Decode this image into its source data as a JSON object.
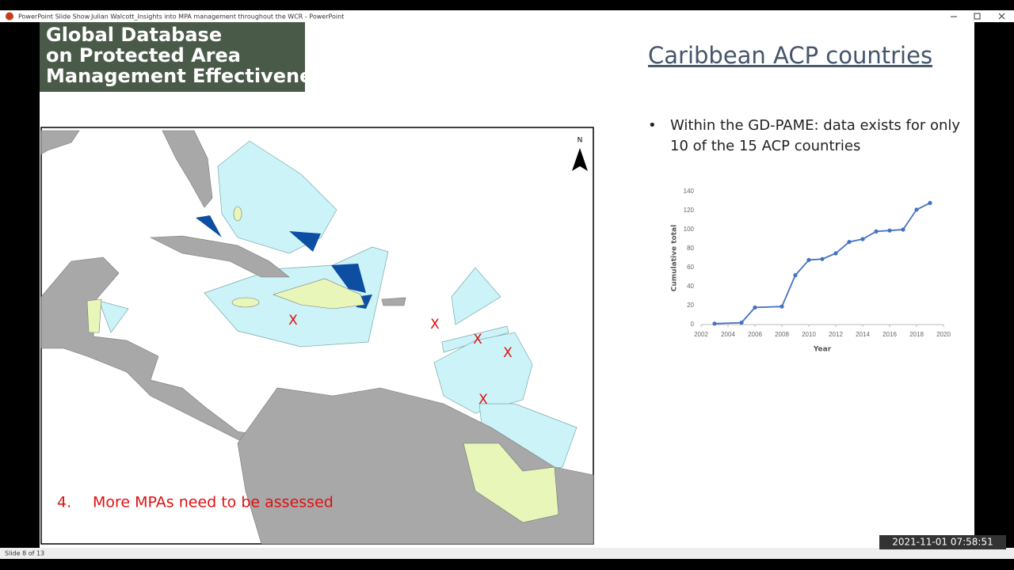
{
  "window": {
    "app_label": "PowerPoint Slide Show",
    "title": "Julian Walcott_Insights into MPA management throughout the WCR - PowerPoint",
    "status": "Slide 8 of 13",
    "timestamp": "2021-11-01  07:58:51"
  },
  "slide": {
    "banner": [
      "Global Database",
      "on Protected Area",
      "Management Effectiveness"
    ],
    "heading": "Caribbean ACP countries",
    "bullet": [
      "Within the GD-PAME: data exists for only",
      "10 of the 15 ACP countries"
    ],
    "map": {
      "north": "N",
      "markers": [
        "X",
        "X",
        "X",
        "X",
        "X"
      ],
      "note_number": "4.",
      "note": "More MPAs need to be assessed"
    }
  },
  "chart_data": {
    "type": "line",
    "x_label": "Year",
    "y_label": "Cumulative total",
    "series": [
      {
        "color": "#4472c4",
        "x": [
          2003,
          2005,
          2006,
          2008,
          2009,
          2010,
          2011,
          2012,
          2013,
          2014,
          2015,
          2016,
          2017,
          2018,
          2019
        ],
        "values": [
          1,
          2,
          18,
          19,
          52,
          68,
          69,
          75,
          87,
          90,
          98,
          99,
          100,
          121,
          128
        ]
      }
    ],
    "xlim": [
      2002,
      2020
    ],
    "xticks": [
      2002,
      2004,
      2006,
      2008,
      2010,
      2012,
      2014,
      2016,
      2018,
      2020
    ],
    "ylim": [
      0,
      140
    ],
    "yticks": [
      0,
      20,
      40,
      60,
      80,
      100,
      120,
      140
    ]
  }
}
